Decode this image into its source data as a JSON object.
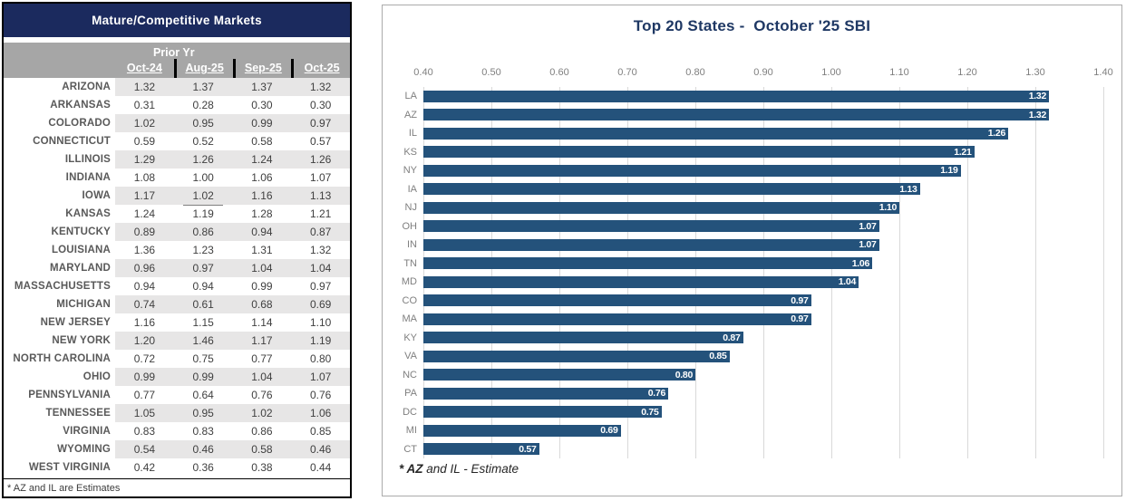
{
  "table": {
    "title": "Mature/Competitive Markets",
    "group_header": "Prior Yr",
    "columns": [
      "Oct-24",
      "Aug-25",
      "Sep-25",
      "Oct-25"
    ],
    "rows": [
      {
        "state": "ARIZONA",
        "values": [
          "1.32",
          "1.37",
          "1.37",
          "1.32"
        ]
      },
      {
        "state": "ARKANSAS",
        "values": [
          "0.31",
          "0.28",
          "0.30",
          "0.30"
        ]
      },
      {
        "state": "COLORADO",
        "values": [
          "1.02",
          "0.95",
          "0.99",
          "0.97"
        ]
      },
      {
        "state": "CONNECTICUT",
        "values": [
          "0.59",
          "0.52",
          "0.58",
          "0.57"
        ]
      },
      {
        "state": "ILLINOIS",
        "values": [
          "1.29",
          "1.26",
          "1.24",
          "1.26"
        ]
      },
      {
        "state": "INDIANA",
        "values": [
          "1.08",
          "1.00",
          "1.06",
          "1.07"
        ]
      },
      {
        "state": "IOWA",
        "values": [
          "1.17",
          "1.02",
          "1.16",
          "1.13"
        ],
        "underline_col": 1
      },
      {
        "state": "KANSAS",
        "values": [
          "1.24",
          "1.19",
          "1.28",
          "1.21"
        ]
      },
      {
        "state": "KENTUCKY",
        "values": [
          "0.89",
          "0.86",
          "0.94",
          "0.87"
        ]
      },
      {
        "state": "LOUISIANA",
        "values": [
          "1.36",
          "1.23",
          "1.31",
          "1.32"
        ]
      },
      {
        "state": "MARYLAND",
        "values": [
          "0.96",
          "0.97",
          "1.04",
          "1.04"
        ]
      },
      {
        "state": "MASSACHUSETTS",
        "values": [
          "0.94",
          "0.94",
          "0.99",
          "0.97"
        ]
      },
      {
        "state": "MICHIGAN",
        "values": [
          "0.74",
          "0.61",
          "0.68",
          "0.69"
        ]
      },
      {
        "state": "NEW JERSEY",
        "values": [
          "1.16",
          "1.15",
          "1.14",
          "1.10"
        ]
      },
      {
        "state": "NEW YORK",
        "values": [
          "1.20",
          "1.46",
          "1.17",
          "1.19"
        ]
      },
      {
        "state": "NORTH CAROLINA",
        "values": [
          "0.72",
          "0.75",
          "0.77",
          "0.80"
        ]
      },
      {
        "state": "OHIO",
        "values": [
          "0.99",
          "0.99",
          "1.04",
          "1.07"
        ]
      },
      {
        "state": "PENNSYLVANIA",
        "values": [
          "0.77",
          "0.64",
          "0.76",
          "0.76"
        ]
      },
      {
        "state": "TENNESSEE",
        "values": [
          "1.05",
          "0.95",
          "1.02",
          "1.06"
        ]
      },
      {
        "state": "VIRGINIA",
        "values": [
          "0.83",
          "0.83",
          "0.86",
          "0.85"
        ]
      },
      {
        "state": "WYOMING",
        "values": [
          "0.54",
          "0.46",
          "0.58",
          "0.46"
        ]
      },
      {
        "state": "WEST VIRGINIA",
        "values": [
          "0.42",
          "0.36",
          "0.38",
          "0.44"
        ]
      }
    ],
    "footnote": "* AZ and IL are Estimates"
  },
  "chart_data": {
    "type": "bar",
    "orientation": "horizontal",
    "title": "Top 20 States -  October '25 SBI",
    "categories": [
      "LA",
      "AZ",
      "IL",
      "KS",
      "NY",
      "IA",
      "NJ",
      "OH",
      "IN",
      "TN",
      "MD",
      "CO",
      "MA",
      "KY",
      "VA",
      "NC",
      "PA",
      "DC",
      "MI",
      "CT"
    ],
    "values": [
      1.32,
      1.32,
      1.26,
      1.21,
      1.19,
      1.13,
      1.1,
      1.07,
      1.07,
      1.06,
      1.04,
      0.97,
      0.97,
      0.87,
      0.85,
      0.8,
      0.76,
      0.75,
      0.69,
      0.57
    ],
    "xlim": [
      0.4,
      1.4
    ],
    "x_ticks": [
      "0.40",
      "0.50",
      "0.60",
      "0.70",
      "0.80",
      "0.90",
      "1.00",
      "1.10",
      "1.20",
      "1.30",
      "1.40"
    ],
    "grid": true,
    "legend": null,
    "value_labels_position": "inside-end",
    "footnote_bold": "* AZ",
    "footnote_rest": " and IL - Estimate"
  },
  "colors": {
    "table_title_bg": "#1B2A5E",
    "chart_title_text": "#1F3864",
    "header_band": "#A6A6A6",
    "row_stripe": "#E7E6E6",
    "bar_fill": "#24527B",
    "gridline": "#D9D9D9"
  }
}
